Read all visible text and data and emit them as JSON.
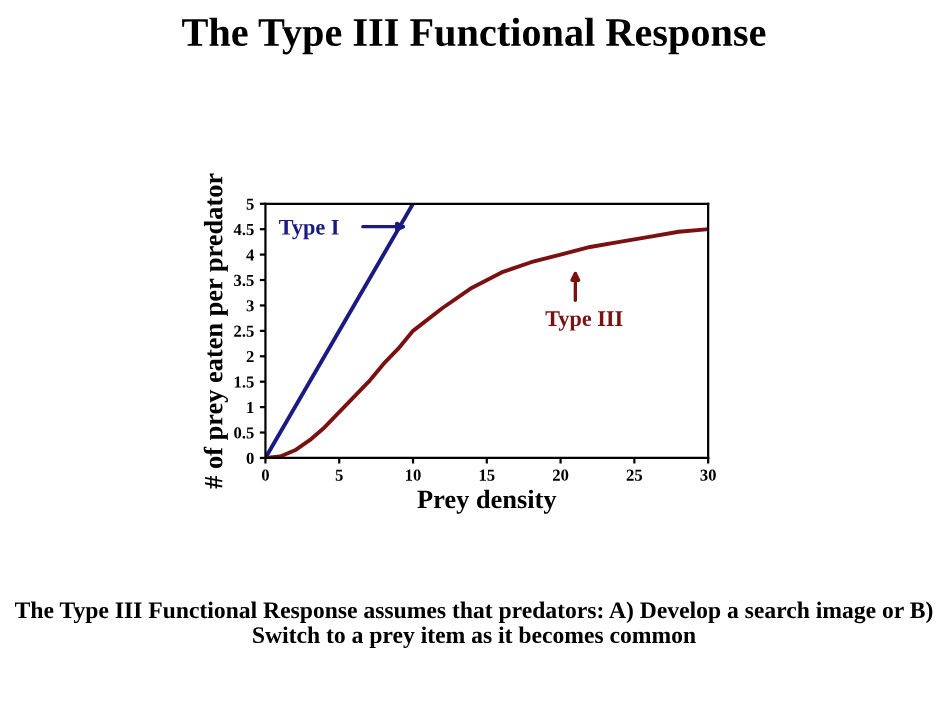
{
  "chart_data": {
    "type": "line",
    "title": "The Type III Functional Response",
    "xlabel": "Prey density",
    "ylabel": "# of prey eaten per predator",
    "series": [
      {
        "color": "#1a1a80",
        "x": [
          0,
          10
        ],
        "values": [
          0,
          5
        ]
      },
      {
        "color": "#7a1010",
        "x": [
          0,
          1,
          2,
          3,
          4,
          5,
          6,
          7,
          8,
          9,
          10,
          12,
          14,
          16,
          18,
          20,
          22,
          24,
          26,
          28,
          30
        ],
        "values": [
          0,
          0.03,
          0.15,
          0.35,
          0.6,
          0.9,
          1.2,
          1.5,
          1.85,
          2.15,
          2.5,
          2.95,
          3.35,
          3.65,
          3.85,
          4.0,
          4.15,
          4.25,
          4.35,
          4.45,
          4.5
        ]
      }
    ],
    "annotations": [
      "Type I",
      "Type III",
      "The Type III Functional Response assumes that predators: A) Develop a search image or B) Switch to a prey item as it becomes common"
    ],
    "xlim": [
      0,
      30
    ],
    "ylim": [
      0,
      5
    ],
    "xticks": [
      0,
      5,
      10,
      15,
      20,
      25,
      30
    ],
    "yticks": [
      0,
      0.5,
      1,
      1.5,
      2,
      2.5,
      3,
      3.5,
      4,
      4.5,
      5
    ],
    "grid": false,
    "marker": "none",
    "line_style": "solid"
  }
}
